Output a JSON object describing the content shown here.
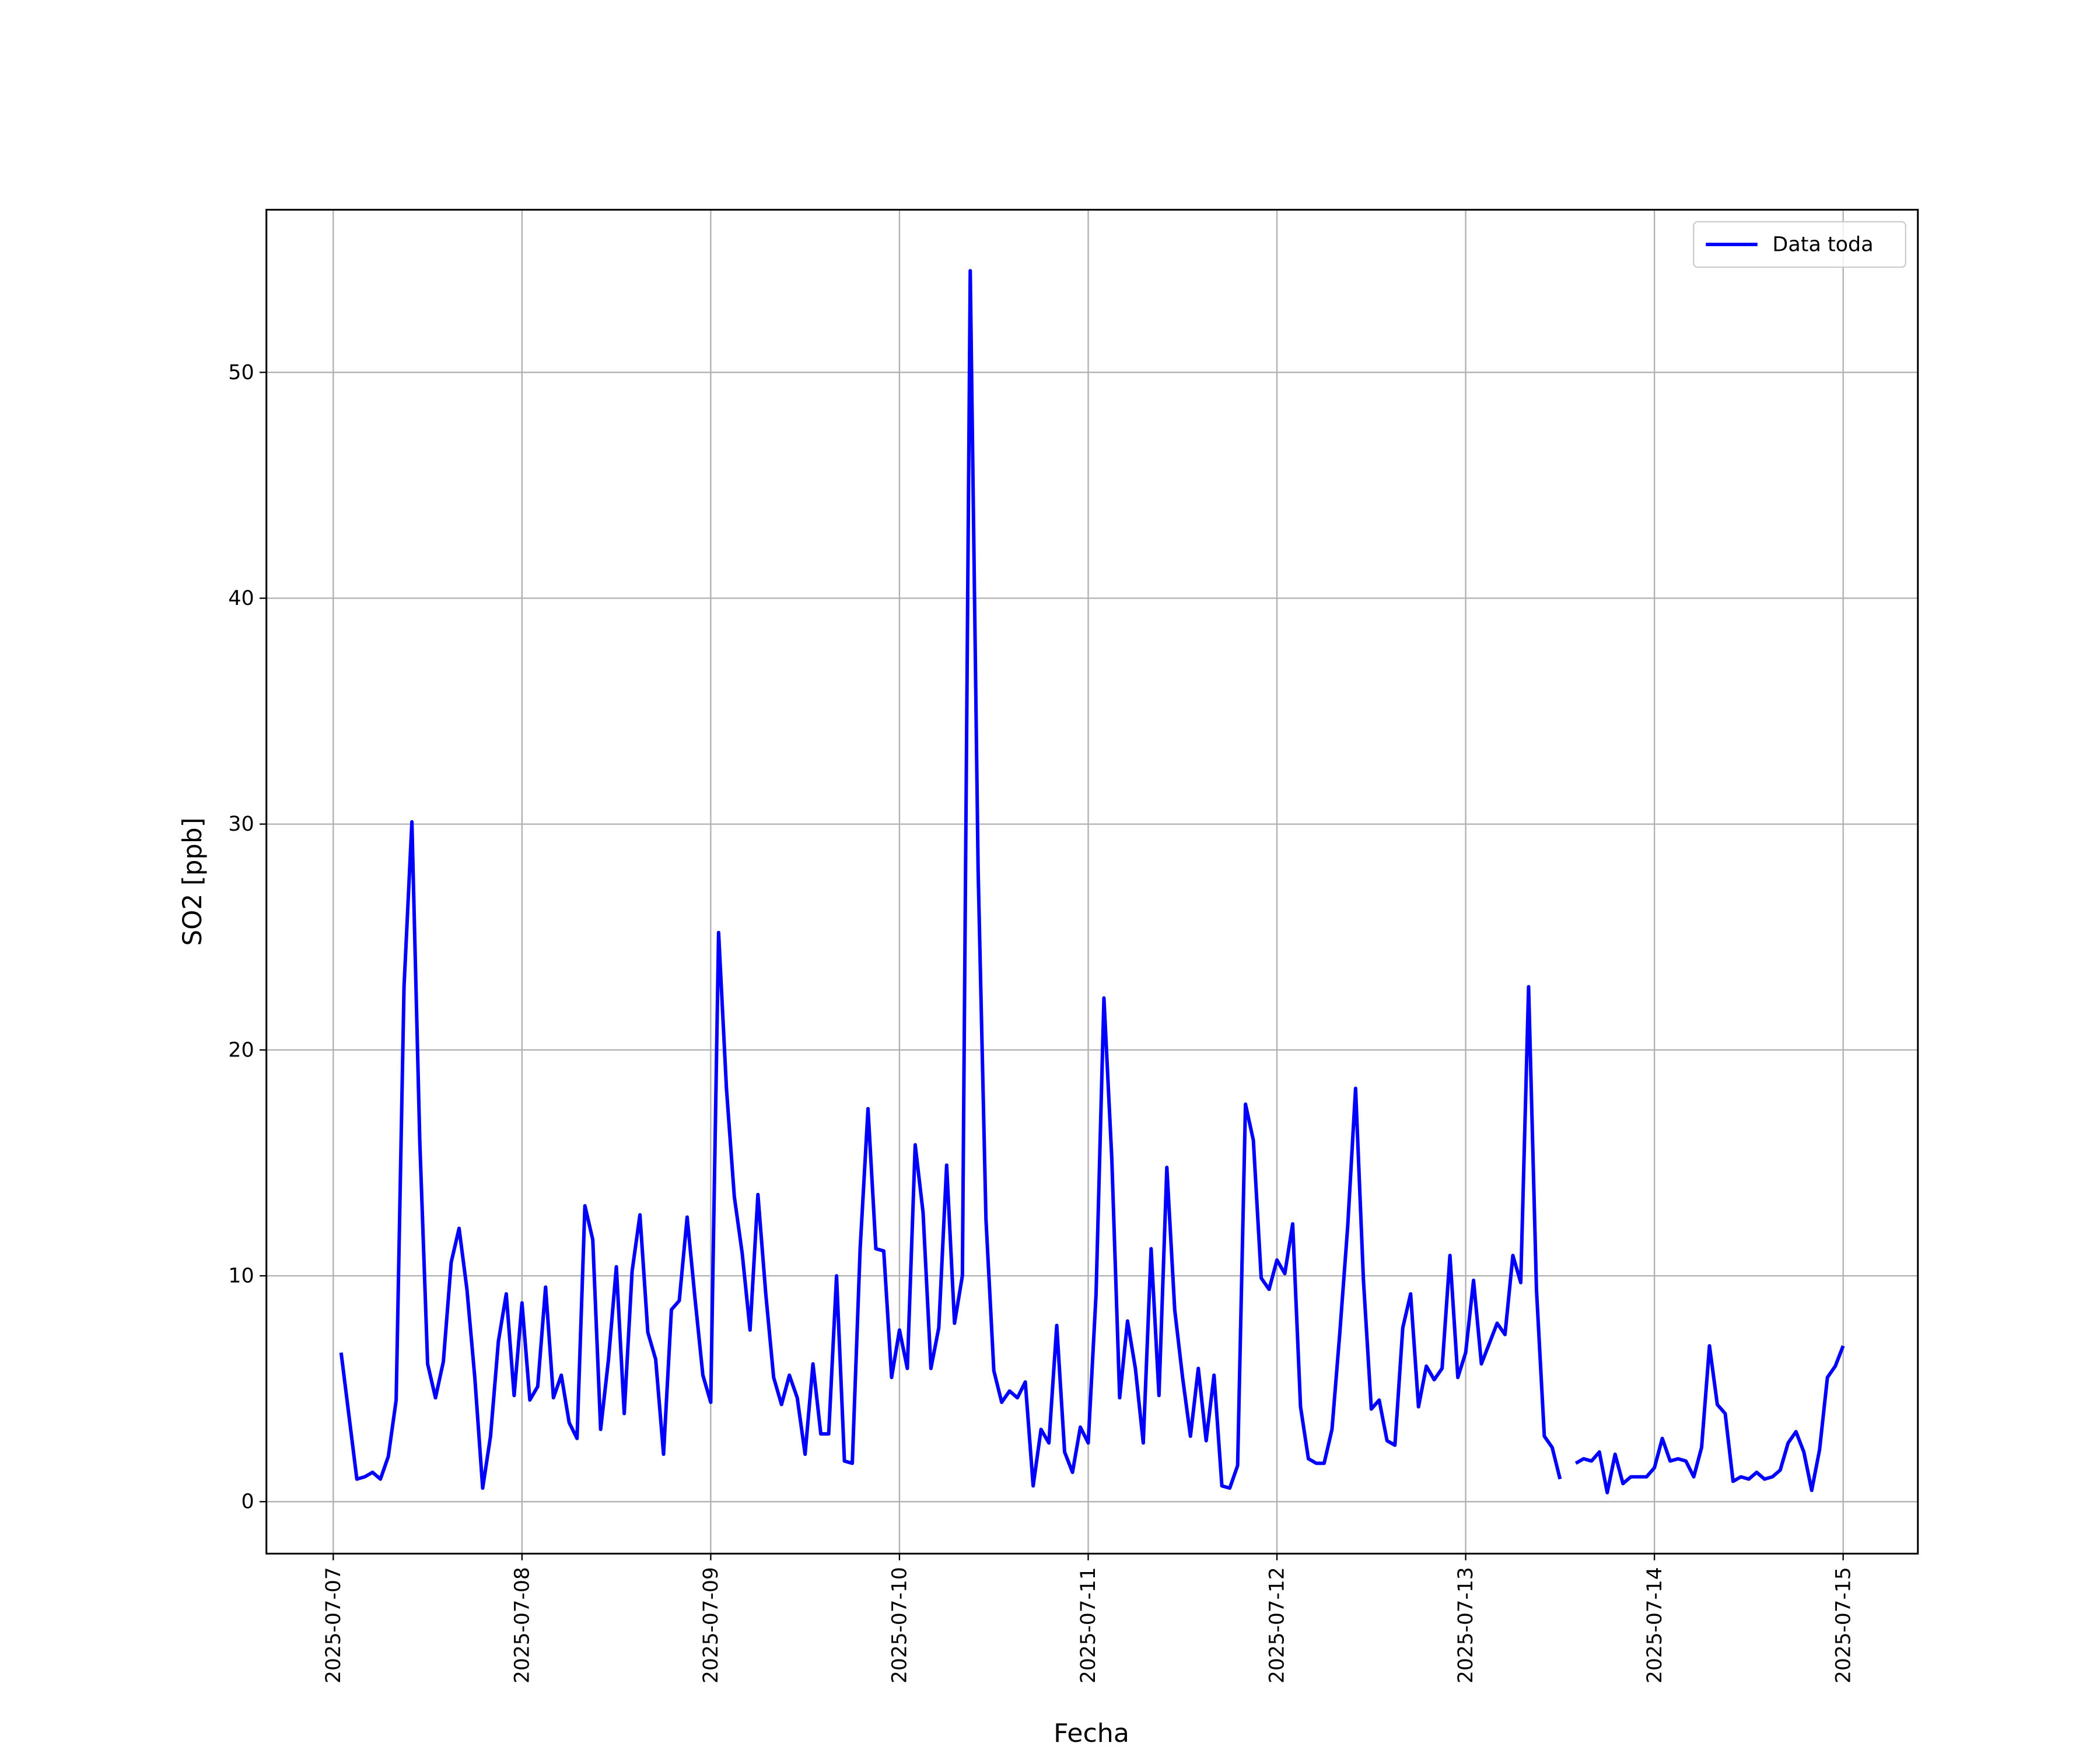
{
  "chart_data": {
    "type": "line",
    "xlabel": "Fecha",
    "ylabel": "SO2 [ppb]",
    "x": [
      "2025-07-07 01:00",
      "2025-07-07 02:00",
      "2025-07-07 03:00",
      "2025-07-07 04:00",
      "2025-07-07 05:00",
      "2025-07-07 06:00",
      "2025-07-07 07:00",
      "2025-07-07 08:00",
      "2025-07-07 09:00",
      "2025-07-07 10:00",
      "2025-07-07 11:00",
      "2025-07-07 12:00",
      "2025-07-07 13:00",
      "2025-07-07 14:00",
      "2025-07-07 15:00",
      "2025-07-07 16:00",
      "2025-07-07 17:00",
      "2025-07-07 18:00",
      "2025-07-07 19:00",
      "2025-07-07 20:00",
      "2025-07-07 21:00",
      "2025-07-07 22:00",
      "2025-07-07 23:00",
      "2025-07-08 00:00",
      "2025-07-08 01:00",
      "2025-07-08 02:00",
      "2025-07-08 03:00",
      "2025-07-08 04:00",
      "2025-07-08 05:00",
      "2025-07-08 06:00",
      "2025-07-08 07:00",
      "2025-07-08 08:00",
      "2025-07-08 09:00",
      "2025-07-08 10:00",
      "2025-07-08 11:00",
      "2025-07-08 12:00",
      "2025-07-08 13:00",
      "2025-07-08 14:00",
      "2025-07-08 15:00",
      "2025-07-08 16:00",
      "2025-07-08 17:00",
      "2025-07-08 18:00",
      "2025-07-08 19:00",
      "2025-07-08 20:00",
      "2025-07-08 21:00",
      "2025-07-08 22:00",
      "2025-07-08 23:00",
      "2025-07-09 00:00",
      "2025-07-09 01:00",
      "2025-07-09 02:00",
      "2025-07-09 03:00",
      "2025-07-09 04:00",
      "2025-07-09 05:00",
      "2025-07-09 06:00",
      "2025-07-09 07:00",
      "2025-07-09 08:00",
      "2025-07-09 09:00",
      "2025-07-09 10:00",
      "2025-07-09 11:00",
      "2025-07-09 12:00",
      "2025-07-09 13:00",
      "2025-07-09 14:00",
      "2025-07-09 15:00",
      "2025-07-09 16:00",
      "2025-07-09 17:00",
      "2025-07-09 18:00",
      "2025-07-09 19:00",
      "2025-07-09 20:00",
      "2025-07-09 21:00",
      "2025-07-09 22:00",
      "2025-07-09 23:00",
      "2025-07-10 00:00",
      "2025-07-10 01:00",
      "2025-07-10 02:00",
      "2025-07-10 03:00",
      "2025-07-10 04:00",
      "2025-07-10 05:00",
      "2025-07-10 06:00",
      "2025-07-10 07:00",
      "2025-07-10 08:00",
      "2025-07-10 09:00",
      "2025-07-10 10:00",
      "2025-07-10 11:00",
      "2025-07-10 12:00",
      "2025-07-10 13:00",
      "2025-07-10 14:00",
      "2025-07-10 15:00",
      "2025-07-10 16:00",
      "2025-07-10 17:00",
      "2025-07-10 18:00",
      "2025-07-10 19:00",
      "2025-07-10 20:00",
      "2025-07-10 21:00",
      "2025-07-10 22:00",
      "2025-07-10 23:00",
      "2025-07-11 00:00",
      "2025-07-11 01:00",
      "2025-07-11 02:00",
      "2025-07-11 03:00",
      "2025-07-11 04:00",
      "2025-07-11 05:00",
      "2025-07-11 06:00",
      "2025-07-11 07:00",
      "2025-07-11 08:00",
      "2025-07-11 09:00",
      "2025-07-11 10:00",
      "2025-07-11 11:00",
      "2025-07-11 12:00",
      "2025-07-11 13:00",
      "2025-07-11 14:00",
      "2025-07-11 15:00",
      "2025-07-11 16:00",
      "2025-07-11 17:00",
      "2025-07-11 18:00",
      "2025-07-11 19:00",
      "2025-07-11 20:00",
      "2025-07-11 21:00",
      "2025-07-11 22:00",
      "2025-07-11 23:00",
      "2025-07-12 00:00",
      "2025-07-12 01:00",
      "2025-07-12 02:00",
      "2025-07-12 03:00",
      "2025-07-12 04:00",
      "2025-07-12 05:00",
      "2025-07-12 06:00",
      "2025-07-12 07:00",
      "2025-07-12 08:00",
      "2025-07-12 09:00",
      "2025-07-12 10:00",
      "2025-07-12 11:00",
      "2025-07-12 12:00",
      "2025-07-12 13:00",
      "2025-07-12 14:00",
      "2025-07-12 15:00",
      "2025-07-12 16:00",
      "2025-07-12 17:00",
      "2025-07-12 18:00",
      "2025-07-12 19:00",
      "2025-07-12 20:00",
      "2025-07-12 21:00",
      "2025-07-12 22:00",
      "2025-07-12 23:00",
      "2025-07-13 00:00",
      "2025-07-13 01:00",
      "2025-07-13 02:00",
      "2025-07-13 03:00",
      "2025-07-13 04:00",
      "2025-07-13 05:00",
      "2025-07-13 06:00",
      "2025-07-13 07:00",
      "2025-07-13 08:00",
      "2025-07-13 09:00",
      "2025-07-13 10:00",
      "2025-07-13 11:00",
      "2025-07-13 12:00",
      "2025-07-13 13:00",
      "2025-07-13 14:00",
      "2025-07-13 15:00",
      "2025-07-13 16:00",
      "2025-07-13 17:00",
      "2025-07-13 18:00",
      "2025-07-13 19:00",
      "2025-07-13 20:00",
      "2025-07-13 21:00",
      "2025-07-13 22:00",
      "2025-07-13 23:00",
      "2025-07-14 00:00",
      "2025-07-14 01:00",
      "2025-07-14 02:00",
      "2025-07-14 03:00",
      "2025-07-14 04:00",
      "2025-07-14 05:00",
      "2025-07-14 06:00",
      "2025-07-14 07:00",
      "2025-07-14 08:00",
      "2025-07-14 09:00",
      "2025-07-14 10:00",
      "2025-07-14 11:00",
      "2025-07-14 12:00",
      "2025-07-14 13:00",
      "2025-07-14 14:00",
      "2025-07-14 15:00",
      "2025-07-14 16:00",
      "2025-07-14 17:00",
      "2025-07-14 18:00",
      "2025-07-14 19:00",
      "2025-07-14 20:00",
      "2025-07-14 21:00",
      "2025-07-14 22:00",
      "2025-07-14 23:00",
      "2025-07-15 00:00"
    ],
    "series": [
      {
        "name": "Data toda",
        "color": "#0000ff",
        "values": [
          6.6,
          3.8,
          1.0,
          1.1,
          1.3,
          1.0,
          2.0,
          4.5,
          22.8,
          30.1,
          16,
          6.1,
          4.6,
          6.2,
          10.6,
          12.1,
          9.4,
          5.5,
          0.6,
          2.9,
          7.1,
          9.2,
          4.7,
          8.8,
          4.5,
          5.1,
          9.5,
          4.6,
          5.6,
          3.5,
          2.8,
          13.1,
          11.6,
          3.2,
          6.3,
          10.4,
          3.9,
          10.2,
          12.7,
          7.5,
          6.3,
          2.1,
          8.5,
          8.9,
          12.6,
          9.0,
          5.6,
          4.4,
          25.2,
          18.3,
          13.5,
          11.0,
          7.6,
          13.6,
          9.2,
          5.5,
          4.3,
          5.6,
          4.6,
          2.1,
          6.1,
          3.0,
          3.0,
          10.0,
          1.8,
          1.7,
          11.2,
          17.4,
          11.2,
          11.1,
          5.5,
          7.6,
          5.9,
          15.8,
          12.8,
          5.9,
          7.7,
          14.9,
          7.9,
          10.0,
          54.5,
          28,
          12.5,
          5.8,
          4.4,
          4.9,
          4.6,
          5.3,
          0.7,
          3.2,
          2.6,
          7.8,
          2.2,
          1.3,
          3.3,
          2.6,
          9.2,
          22.3,
          15.2,
          4.6,
          8.0,
          5.9,
          2.6,
          11.2,
          4.7,
          14.8,
          8.5,
          5.5,
          2.9,
          5.9,
          2.7,
          5.6,
          0.7,
          0.6,
          1.6,
          17.6,
          16.0,
          9.9,
          9.4,
          10.7,
          10.1,
          12.3,
          4.2,
          1.9,
          1.7,
          1.7,
          3.2,
          7.5,
          12.2,
          18.3,
          9.8,
          4.1,
          4.5,
          2.7,
          2.5,
          7.7,
          9.2,
          4.2,
          6.0,
          5.4,
          5.9,
          10.9,
          5.5,
          6.6,
          9.8,
          6.1,
          7.0,
          7.9,
          7.4,
          10.9,
          9.7,
          22.8,
          9.4,
          2.9,
          2.4,
          1.0,
          null,
          1.7,
          1.9,
          1.8,
          2.2,
          0.4,
          2.1,
          0.8,
          1.1,
          1.1,
          1.1,
          1.5,
          2.8,
          1.8,
          1.9,
          1.8,
          1.1,
          2.4,
          6.9,
          4.3,
          3.9,
          0.9,
          1.1,
          1.0,
          1.3,
          1.0,
          1.1,
          1.4,
          2.6,
          3.1,
          2.2,
          0.5,
          2.3,
          5.5,
          6.0,
          6.9
        ]
      }
    ],
    "xlim": [
      "2025-07-06 15:30",
      "2025-07-15 09:30"
    ],
    "xticks": [
      "2025-07-07",
      "2025-07-08",
      "2025-07-09",
      "2025-07-10",
      "2025-07-11",
      "2025-07-12",
      "2025-07-13",
      "2025-07-14",
      "2025-07-15"
    ],
    "ylim": [
      -2.3,
      57.2
    ],
    "yticks": [
      0,
      10,
      20,
      30,
      40,
      50
    ],
    "grid": true,
    "legend": "upper right"
  }
}
